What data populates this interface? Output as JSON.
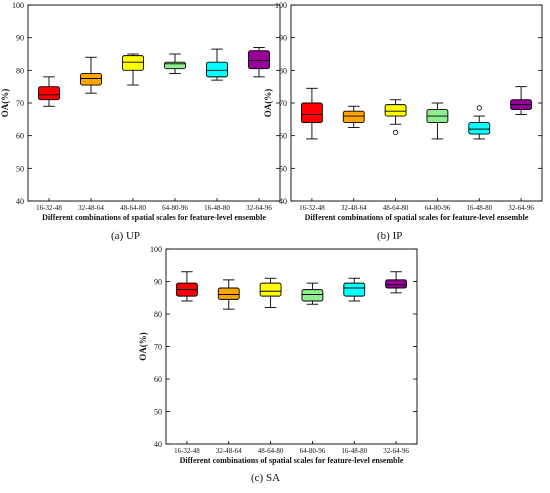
{
  "chart_data": [
    {
      "type": "box",
      "panel": "a",
      "caption": "(a) UP",
      "xlabel": "Different combinations of spatial scales for feature-level ensemble",
      "ylabel": "OA(%)",
      "ylim": [
        40,
        100
      ],
      "yticks": [
        40,
        50,
        60,
        70,
        80,
        90,
        100
      ],
      "categories": [
        "16-32-48",
        "32-48-64",
        "48-64-80",
        "64-80-96",
        "16-48-80",
        "32-64-96"
      ],
      "colors": [
        "#ff0000",
        "#ffa500",
        "#ffff00",
        "#90ee90",
        "#00ffff",
        "#990099"
      ],
      "boxes": [
        {
          "min": 69,
          "q1": 71,
          "median": 72.5,
          "q3": 75,
          "max": 78,
          "outliers": []
        },
        {
          "min": 73,
          "q1": 75.5,
          "median": 77.5,
          "q3": 79,
          "max": 84,
          "outliers": []
        },
        {
          "min": 75.5,
          "q1": 80,
          "median": 82.5,
          "q3": 84.5,
          "max": 85,
          "outliers": []
        },
        {
          "min": 79,
          "q1": 80.5,
          "median": 82,
          "q3": 82.5,
          "max": 85,
          "outliers": []
        },
        {
          "min": 77,
          "q1": 78,
          "median": 80,
          "q3": 82.5,
          "max": 86.5,
          "outliers": []
        },
        {
          "min": 78,
          "q1": 80.5,
          "median": 83,
          "q3": 86,
          "max": 87,
          "outliers": []
        }
      ]
    },
    {
      "type": "box",
      "panel": "b",
      "caption": "(b) IP",
      "xlabel": "Different combinations of spatial scales for feature-level ensemble",
      "ylabel": "OA(%)",
      "ylim": [
        40,
        100
      ],
      "yticks": [
        40,
        50,
        60,
        70,
        80,
        90,
        100
      ],
      "categories": [
        "16-32-48",
        "32-48-64",
        "48-64-80",
        "64-80-96",
        "16-48-80",
        "32-64-96"
      ],
      "colors": [
        "#ff0000",
        "#ffa500",
        "#ffff00",
        "#90ee90",
        "#00ffff",
        "#990099"
      ],
      "boxes": [
        {
          "min": 59,
          "q1": 64,
          "median": 66.5,
          "q3": 70,
          "max": 74.5,
          "outliers": []
        },
        {
          "min": 62.5,
          "q1": 64,
          "median": 66,
          "q3": 67.5,
          "max": 69,
          "outliers": []
        },
        {
          "min": 63.5,
          "q1": 66,
          "median": 67.5,
          "q3": 69.5,
          "max": 71,
          "outliers": [
            61
          ]
        },
        {
          "min": 59,
          "q1": 64,
          "median": 66,
          "q3": 68,
          "max": 70,
          "outliers": []
        },
        {
          "min": 59,
          "q1": 60.5,
          "median": 62,
          "q3": 64,
          "max": 66,
          "outliers": [
            68.5
          ]
        },
        {
          "min": 66.5,
          "q1": 68,
          "median": 69.5,
          "q3": 71,
          "max": 75,
          "outliers": []
        }
      ]
    },
    {
      "type": "box",
      "panel": "c",
      "caption": "(c) SA",
      "xlabel": "Different combinations of spatial scales for feature-level ensemble",
      "ylabel": "OA(%)",
      "ylim": [
        40,
        100
      ],
      "yticks": [
        40,
        50,
        60,
        70,
        80,
        90,
        100
      ],
      "categories": [
        "16-32-48",
        "32-48-64",
        "48-64-80",
        "64-80-96",
        "16-48-80",
        "32-64-96"
      ],
      "colors": [
        "#ff0000",
        "#ffa500",
        "#ffff00",
        "#90ee90",
        "#00ffff",
        "#990099"
      ],
      "boxes": [
        {
          "min": 84,
          "q1": 85.5,
          "median": 87.5,
          "q3": 89.5,
          "max": 93,
          "outliers": []
        },
        {
          "min": 81.5,
          "q1": 84.5,
          "median": 86,
          "q3": 88,
          "max": 90.5,
          "outliers": []
        },
        {
          "min": 82,
          "q1": 85.5,
          "median": 87,
          "q3": 89.5,
          "max": 91,
          "outliers": []
        },
        {
          "min": 83,
          "q1": 84,
          "median": 86,
          "q3": 87.5,
          "max": 89.5,
          "outliers": []
        },
        {
          "min": 84,
          "q1": 85.5,
          "median": 88,
          "q3": 89.5,
          "max": 91,
          "outliers": []
        },
        {
          "min": 86.5,
          "q1": 88,
          "median": 89,
          "q3": 90.5,
          "max": 93,
          "outliers": []
        }
      ]
    }
  ]
}
